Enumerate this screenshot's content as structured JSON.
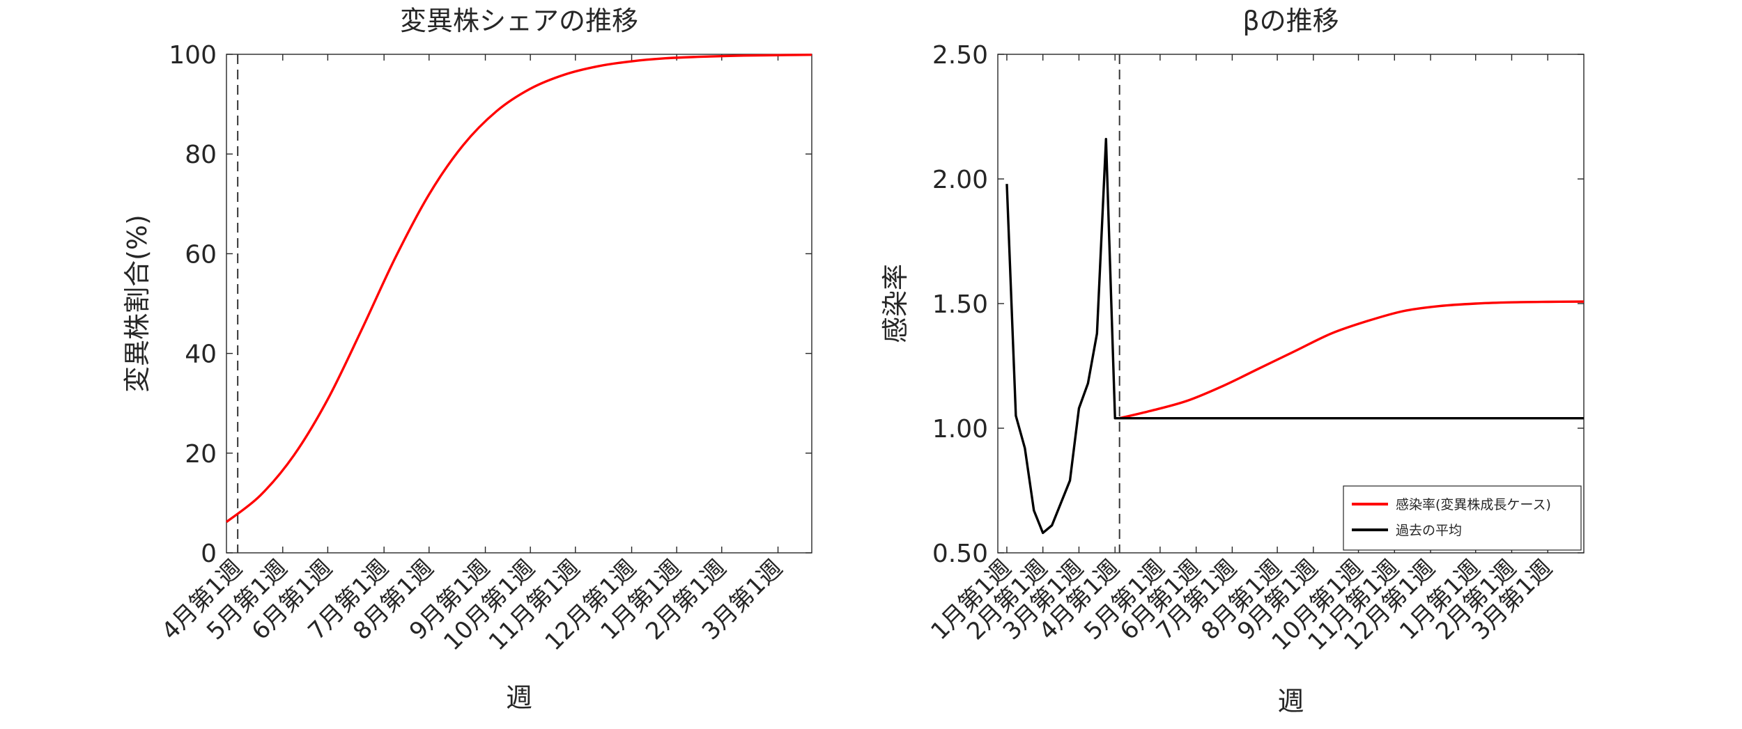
{
  "chart_data": [
    {
      "type": "line",
      "title": "変異株シェアの推移",
      "xlabel": "週",
      "ylabel": "変異株割合(%)",
      "ylim": [
        0,
        100
      ],
      "yticks": [
        "0",
        "20",
        "40",
        "60",
        "80",
        "100"
      ],
      "grid": false,
      "xtick_labels": [
        "4月第1週",
        "5月第1週",
        "6月第1週",
        "7月第1週",
        "8月第1週",
        "9月第1週",
        "10月第1週",
        "11月第1週",
        "12月第1週",
        "1月第1週",
        "2月第1週",
        "3月第1週"
      ],
      "xtick_weeks": [
        0,
        4,
        8,
        13,
        17,
        22,
        26,
        30,
        35,
        39,
        43,
        48
      ],
      "x_range_weeks": [
        -1,
        51
      ],
      "vline_week": 0,
      "line_color": "#ff0000",
      "series": [
        {
          "color": "#ff0000",
          "x_weeks": [
            -1,
            2,
            5,
            8,
            11,
            14,
            17,
            20,
            23,
            26,
            29,
            32,
            35,
            38,
            41,
            44,
            47,
            51
          ],
          "values": [
            6.2,
            11.5,
            19.6,
            30.8,
            44.7,
            59.2,
            71.9,
            81.7,
            88.6,
            93.1,
            95.9,
            97.6,
            98.6,
            99.2,
            99.5,
            99.7,
            99.8,
            99.9
          ]
        }
      ]
    },
    {
      "type": "line",
      "title": "βの推移",
      "xlabel": "週",
      "ylabel": "感染率",
      "ylim": [
        0.5,
        2.5
      ],
      "yticks": [
        "0.50",
        "1.00",
        "1.50",
        "2.00",
        "2.50"
      ],
      "grid": false,
      "xtick_labels": [
        "1月第1週",
        "2月第1週",
        "3月第1週",
        "4月第1週",
        "5月第1週",
        "6月第1週",
        "7月第1週",
        "8月第1週",
        "9月第1週",
        "10月第1週",
        "11月第1週",
        "12月第1週",
        "1月第1週",
        "2月第1週",
        "3月第1週"
      ],
      "xtick_weeks": [
        0,
        4,
        8,
        12,
        17,
        21,
        25,
        30,
        34,
        39,
        43,
        47,
        52,
        56,
        60
      ],
      "x_range_weeks": [
        -1,
        64
      ],
      "vline_week": 12.5,
      "legend_position": "bottom-right",
      "series": [
        {
          "name": "感染率(変異株成長ケース)",
          "color": "#ff0000",
          "x_weeks": [
            12.5,
            16,
            20,
            24,
            28,
            32,
            36,
            40,
            44,
            48,
            52,
            56,
            60,
            64
          ],
          "values": [
            1.04,
            1.07,
            1.11,
            1.17,
            1.24,
            1.31,
            1.38,
            1.43,
            1.47,
            1.49,
            1.5,
            1.505,
            1.507,
            1.508
          ]
        },
        {
          "name": "過去の平均",
          "color": "#000000",
          "x_weeks": [
            0,
            1,
            2,
            3,
            4,
            5,
            6,
            7,
            8,
            9,
            10,
            11,
            12,
            12.5,
            64
          ],
          "values": [
            1.98,
            1.05,
            0.92,
            0.67,
            0.58,
            0.61,
            0.7,
            0.79,
            1.08,
            1.18,
            1.38,
            2.16,
            1.04,
            1.04,
            1.04
          ]
        }
      ]
    }
  ]
}
